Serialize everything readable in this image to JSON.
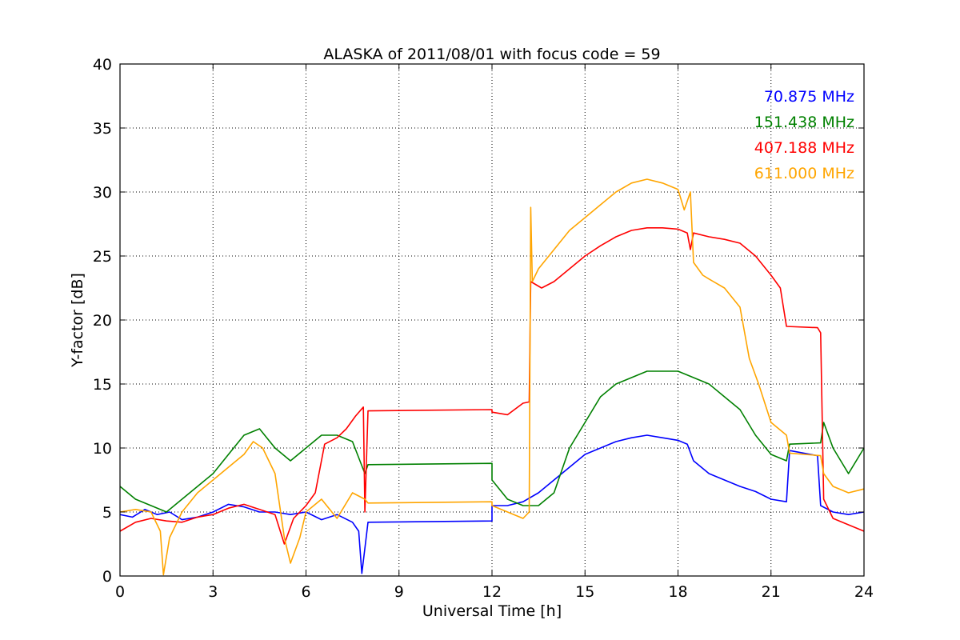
{
  "chart_data": {
    "type": "line",
    "title": "ALASKA of 2011/08/01 with focus code = 59",
    "xlabel": "Universal Time [h]",
    "ylabel": "Y-factor [dB]",
    "xlim": [
      0,
      24
    ],
    "ylim": [
      0,
      40
    ],
    "xticks": [
      0,
      3,
      6,
      9,
      12,
      15,
      18,
      21,
      24
    ],
    "yticks": [
      0,
      5,
      10,
      15,
      20,
      25,
      30,
      35,
      40
    ],
    "grid": true,
    "legend_position": "top-right",
    "series": [
      {
        "name": "70.875 MHz",
        "color": "#0000ff",
        "points": [
          [
            0,
            4.8
          ],
          [
            0.4,
            4.6
          ],
          [
            0.8,
            5.2
          ],
          [
            1.2,
            4.8
          ],
          [
            1.6,
            5.0
          ],
          [
            2.0,
            4.4
          ],
          [
            2.5,
            4.6
          ],
          [
            3.0,
            5.0
          ],
          [
            3.5,
            5.6
          ],
          [
            4.0,
            5.4
          ],
          [
            4.5,
            5.0
          ],
          [
            5.0,
            5.0
          ],
          [
            5.5,
            4.8
          ],
          [
            6.0,
            5.0
          ],
          [
            6.5,
            4.4
          ],
          [
            7.0,
            4.8
          ],
          [
            7.5,
            4.2
          ],
          [
            7.7,
            3.5
          ],
          [
            7.8,
            0.2
          ],
          [
            7.95,
            3.2
          ],
          [
            8.0,
            4.2
          ],
          [
            12.0,
            4.3
          ],
          [
            12.0,
            5.5
          ],
          [
            12.5,
            5.5
          ],
          [
            13.0,
            5.8
          ],
          [
            13.5,
            6.5
          ],
          [
            14.0,
            7.5
          ],
          [
            14.5,
            8.5
          ],
          [
            15.0,
            9.5
          ],
          [
            15.5,
            10.0
          ],
          [
            16.0,
            10.5
          ],
          [
            16.5,
            10.8
          ],
          [
            17.0,
            11.0
          ],
          [
            17.5,
            10.8
          ],
          [
            18.0,
            10.6
          ],
          [
            18.3,
            10.3
          ],
          [
            18.5,
            9.0
          ],
          [
            19.0,
            8.0
          ],
          [
            19.5,
            7.5
          ],
          [
            20.0,
            7.0
          ],
          [
            20.5,
            6.6
          ],
          [
            21.0,
            6.0
          ],
          [
            21.5,
            5.8
          ],
          [
            21.6,
            9.8
          ],
          [
            22.5,
            9.4
          ],
          [
            22.6,
            5.5
          ],
          [
            23.0,
            5.0
          ],
          [
            23.5,
            4.8
          ],
          [
            24,
            5.0
          ]
        ]
      },
      {
        "name": "151.438 MHz",
        "color": "#008000",
        "points": [
          [
            0,
            7.0
          ],
          [
            0.5,
            6.0
          ],
          [
            1.0,
            5.5
          ],
          [
            1.5,
            5.0
          ],
          [
            2.0,
            6.0
          ],
          [
            2.5,
            7.0
          ],
          [
            3.0,
            8.0
          ],
          [
            3.5,
            9.5
          ],
          [
            4.0,
            11.0
          ],
          [
            4.5,
            11.5
          ],
          [
            5.0,
            10.0
          ],
          [
            5.5,
            9.0
          ],
          [
            6.0,
            10.0
          ],
          [
            6.5,
            11.0
          ],
          [
            7.0,
            11.0
          ],
          [
            7.5,
            10.5
          ],
          [
            7.9,
            8.0
          ],
          [
            8.0,
            8.7
          ],
          [
            12.0,
            8.8
          ],
          [
            12.0,
            7.5
          ],
          [
            12.5,
            6.0
          ],
          [
            13.0,
            5.5
          ],
          [
            13.5,
            5.5
          ],
          [
            14.0,
            6.5
          ],
          [
            14.5,
            10.0
          ],
          [
            15.0,
            12.0
          ],
          [
            15.5,
            14.0
          ],
          [
            16.0,
            15.0
          ],
          [
            16.5,
            15.5
          ],
          [
            17.0,
            16.0
          ],
          [
            17.5,
            16.0
          ],
          [
            18.0,
            16.0
          ],
          [
            18.5,
            15.5
          ],
          [
            19.0,
            15.0
          ],
          [
            19.5,
            14.0
          ],
          [
            20.0,
            13.0
          ],
          [
            20.5,
            11.0
          ],
          [
            21.0,
            9.5
          ],
          [
            21.5,
            9.0
          ],
          [
            21.6,
            10.3
          ],
          [
            22.6,
            10.4
          ],
          [
            22.7,
            12.0
          ],
          [
            23.0,
            10.0
          ],
          [
            23.5,
            8.0
          ],
          [
            24,
            10.0
          ]
        ]
      },
      {
        "name": "407.188 MHz",
        "color": "#ff0000",
        "points": [
          [
            0,
            3.5
          ],
          [
            0.5,
            4.2
          ],
          [
            1.0,
            4.5
          ],
          [
            1.5,
            4.3
          ],
          [
            2.0,
            4.2
          ],
          [
            2.5,
            4.6
          ],
          [
            3.0,
            4.8
          ],
          [
            3.5,
            5.3
          ],
          [
            4.0,
            5.6
          ],
          [
            4.5,
            5.2
          ],
          [
            5.0,
            4.8
          ],
          [
            5.3,
            2.5
          ],
          [
            5.6,
            4.5
          ],
          [
            6.0,
            5.5
          ],
          [
            6.3,
            6.5
          ],
          [
            6.6,
            10.3
          ],
          [
            7.0,
            10.8
          ],
          [
            7.3,
            11.5
          ],
          [
            7.6,
            12.5
          ],
          [
            7.85,
            13.2
          ],
          [
            7.9,
            5.0
          ],
          [
            8.0,
            12.9
          ],
          [
            12.0,
            13.0
          ],
          [
            12.0,
            12.8
          ],
          [
            12.5,
            12.6
          ],
          [
            13.0,
            13.5
          ],
          [
            13.2,
            13.6
          ],
          [
            13.25,
            23.0
          ],
          [
            13.6,
            22.5
          ],
          [
            14.0,
            23.0
          ],
          [
            14.5,
            24.0
          ],
          [
            15.0,
            25.0
          ],
          [
            15.5,
            25.8
          ],
          [
            16.0,
            26.5
          ],
          [
            16.5,
            27.0
          ],
          [
            17.0,
            27.2
          ],
          [
            17.5,
            27.2
          ],
          [
            18.0,
            27.1
          ],
          [
            18.3,
            26.8
          ],
          [
            18.4,
            25.5
          ],
          [
            18.5,
            26.8
          ],
          [
            19.0,
            26.5
          ],
          [
            19.5,
            26.3
          ],
          [
            20.0,
            26.0
          ],
          [
            20.5,
            25.0
          ],
          [
            21.0,
            23.5
          ],
          [
            21.3,
            22.5
          ],
          [
            21.5,
            19.5
          ],
          [
            22.5,
            19.4
          ],
          [
            22.6,
            19.0
          ],
          [
            22.7,
            6.0
          ],
          [
            23.0,
            4.5
          ],
          [
            23.5,
            4.0
          ],
          [
            24,
            3.5
          ]
        ]
      },
      {
        "name": "611.000 MHz",
        "color": "#ffa500",
        "points": [
          [
            0,
            5.0
          ],
          [
            0.5,
            5.2
          ],
          [
            1.0,
            5.0
          ],
          [
            1.3,
            3.5
          ],
          [
            1.4,
            0.1
          ],
          [
            1.6,
            3.0
          ],
          [
            2.0,
            5.0
          ],
          [
            2.5,
            6.5
          ],
          [
            3.0,
            7.5
          ],
          [
            3.5,
            8.5
          ],
          [
            4.0,
            9.5
          ],
          [
            4.3,
            10.5
          ],
          [
            4.6,
            10.0
          ],
          [
            5.0,
            8.0
          ],
          [
            5.3,
            3.0
          ],
          [
            5.5,
            1.0
          ],
          [
            5.8,
            3.0
          ],
          [
            6.0,
            5.0
          ],
          [
            6.5,
            6.0
          ],
          [
            7.0,
            4.5
          ],
          [
            7.5,
            6.5
          ],
          [
            7.9,
            6.0
          ],
          [
            8.0,
            5.7
          ],
          [
            12.0,
            5.8
          ],
          [
            12.0,
            5.5
          ],
          [
            12.5,
            5.0
          ],
          [
            13.0,
            4.5
          ],
          [
            13.2,
            5.0
          ],
          [
            13.25,
            28.8
          ],
          [
            13.3,
            23.0
          ],
          [
            13.5,
            24.0
          ],
          [
            14.0,
            25.5
          ],
          [
            14.5,
            27.0
          ],
          [
            15.0,
            28.0
          ],
          [
            15.5,
            29.0
          ],
          [
            16.0,
            30.0
          ],
          [
            16.5,
            30.7
          ],
          [
            17.0,
            31.0
          ],
          [
            17.5,
            30.7
          ],
          [
            18.0,
            30.2
          ],
          [
            18.2,
            28.6
          ],
          [
            18.4,
            30.0
          ],
          [
            18.5,
            24.5
          ],
          [
            18.8,
            23.5
          ],
          [
            19.0,
            23.2
          ],
          [
            19.5,
            22.5
          ],
          [
            20.0,
            21.0
          ],
          [
            20.3,
            17.0
          ],
          [
            20.6,
            15.0
          ],
          [
            21.0,
            12.0
          ],
          [
            21.5,
            11.0
          ],
          [
            21.6,
            9.6
          ],
          [
            22.6,
            9.4
          ],
          [
            22.7,
            8.0
          ],
          [
            23.0,
            7.0
          ],
          [
            23.5,
            6.5
          ],
          [
            24,
            6.8
          ]
        ]
      }
    ]
  }
}
